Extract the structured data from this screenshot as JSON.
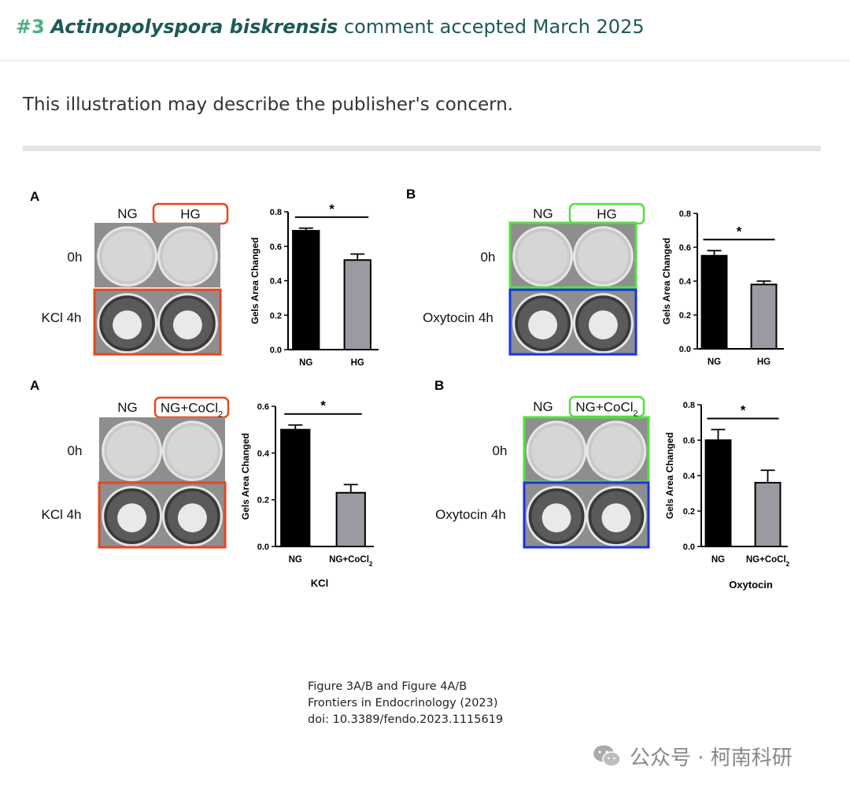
{
  "header": {
    "number": "#3",
    "species": "Actinopolyspora biskrensis",
    "rest": " comment accepted March 2025"
  },
  "intro": "This illustration may describe the publisher's concern.",
  "figure": {
    "panels": [
      {
        "id": "tl",
        "letter": "A",
        "col_left": "NG",
        "col_right": "HG",
        "col_right_sub": "",
        "row_top": "0h",
        "row_bottom": "KCl 4h",
        "accent": "#e8461e",
        "accent_bottom": "#e8461e"
      },
      {
        "id": "tr",
        "letter": "B",
        "col_left": "NG",
        "col_right": "HG",
        "col_right_sub": "",
        "row_top": "0h",
        "row_bottom": "Oxytocin 4h",
        "accent": "#55e040",
        "accent_bottom": "#1a33e0"
      },
      {
        "id": "bl",
        "letter": "A",
        "col_left": "NG",
        "col_right": "NG+CoCl",
        "col_right_sub": "2",
        "row_top": "0h",
        "row_bottom": "KCl 4h",
        "accent": "#e8461e",
        "accent_bottom": "#e8461e"
      },
      {
        "id": "br",
        "letter": "B",
        "col_left": "NG",
        "col_right": "NG+CoCl",
        "col_right_sub": "2",
        "row_top": "0h",
        "row_bottom": "Oxytocin 4h",
        "accent": "#55e040",
        "accent_bottom": "#1a33e0"
      }
    ],
    "caption": [
      "Figure 3A/B and Figure 4A/B",
      "Frontiers in Endocrinology (2023)",
      "doi: 10.3389/fendo.2023.1115619"
    ]
  },
  "watermark": "公众号 · 柯南科研",
  "chart_data": [
    {
      "type": "bar",
      "ylabel": "Gels Area Changed",
      "xlabel": "",
      "categories": [
        "NG",
        "HG"
      ],
      "category_subscripts": [
        "",
        ""
      ],
      "values": [
        0.69,
        0.52
      ],
      "errors": [
        0.015,
        0.035
      ],
      "colors": [
        "#000000",
        "#9a9aa2"
      ],
      "ylim": [
        0,
        0.8
      ],
      "yticks": [
        "0.0",
        "0.2",
        "0.4",
        "0.6",
        "0.8"
      ],
      "significance": "*"
    },
    {
      "type": "bar",
      "ylabel": "Gels Area Changed",
      "xlabel": "",
      "categories": [
        "NG",
        "HG"
      ],
      "category_subscripts": [
        "",
        ""
      ],
      "values": [
        0.55,
        0.38
      ],
      "errors": [
        0.03,
        0.02
      ],
      "colors": [
        "#000000",
        "#9a9aa2"
      ],
      "ylim": [
        0,
        0.8
      ],
      "yticks": [
        "0.0",
        "0.2",
        "0.4",
        "0.6",
        "0.8"
      ],
      "significance": "*"
    },
    {
      "type": "bar",
      "ylabel": "Gels Area Changed",
      "xlabel": "KCl",
      "categories": [
        "NG",
        "NG+CoCl"
      ],
      "category_subscripts": [
        "",
        "2"
      ],
      "values": [
        0.5,
        0.23
      ],
      "errors": [
        0.02,
        0.035
      ],
      "colors": [
        "#000000",
        "#9a9aa2"
      ],
      "ylim": [
        0,
        0.6
      ],
      "yticks": [
        "0.0",
        "0.2",
        "0.4",
        "0.6"
      ],
      "significance": "*"
    },
    {
      "type": "bar",
      "ylabel": "Gels Area Changed",
      "xlabel": "Oxytocin",
      "categories": [
        "NG",
        "NG+CoCl"
      ],
      "category_subscripts": [
        "",
        "2"
      ],
      "values": [
        0.6,
        0.36
      ],
      "errors": [
        0.06,
        0.07
      ],
      "colors": [
        "#000000",
        "#9a9aa2"
      ],
      "ylim": [
        0,
        0.8
      ],
      "yticks": [
        "0.0",
        "0.2",
        "0.4",
        "0.6",
        "0.8"
      ],
      "significance": "*"
    }
  ]
}
